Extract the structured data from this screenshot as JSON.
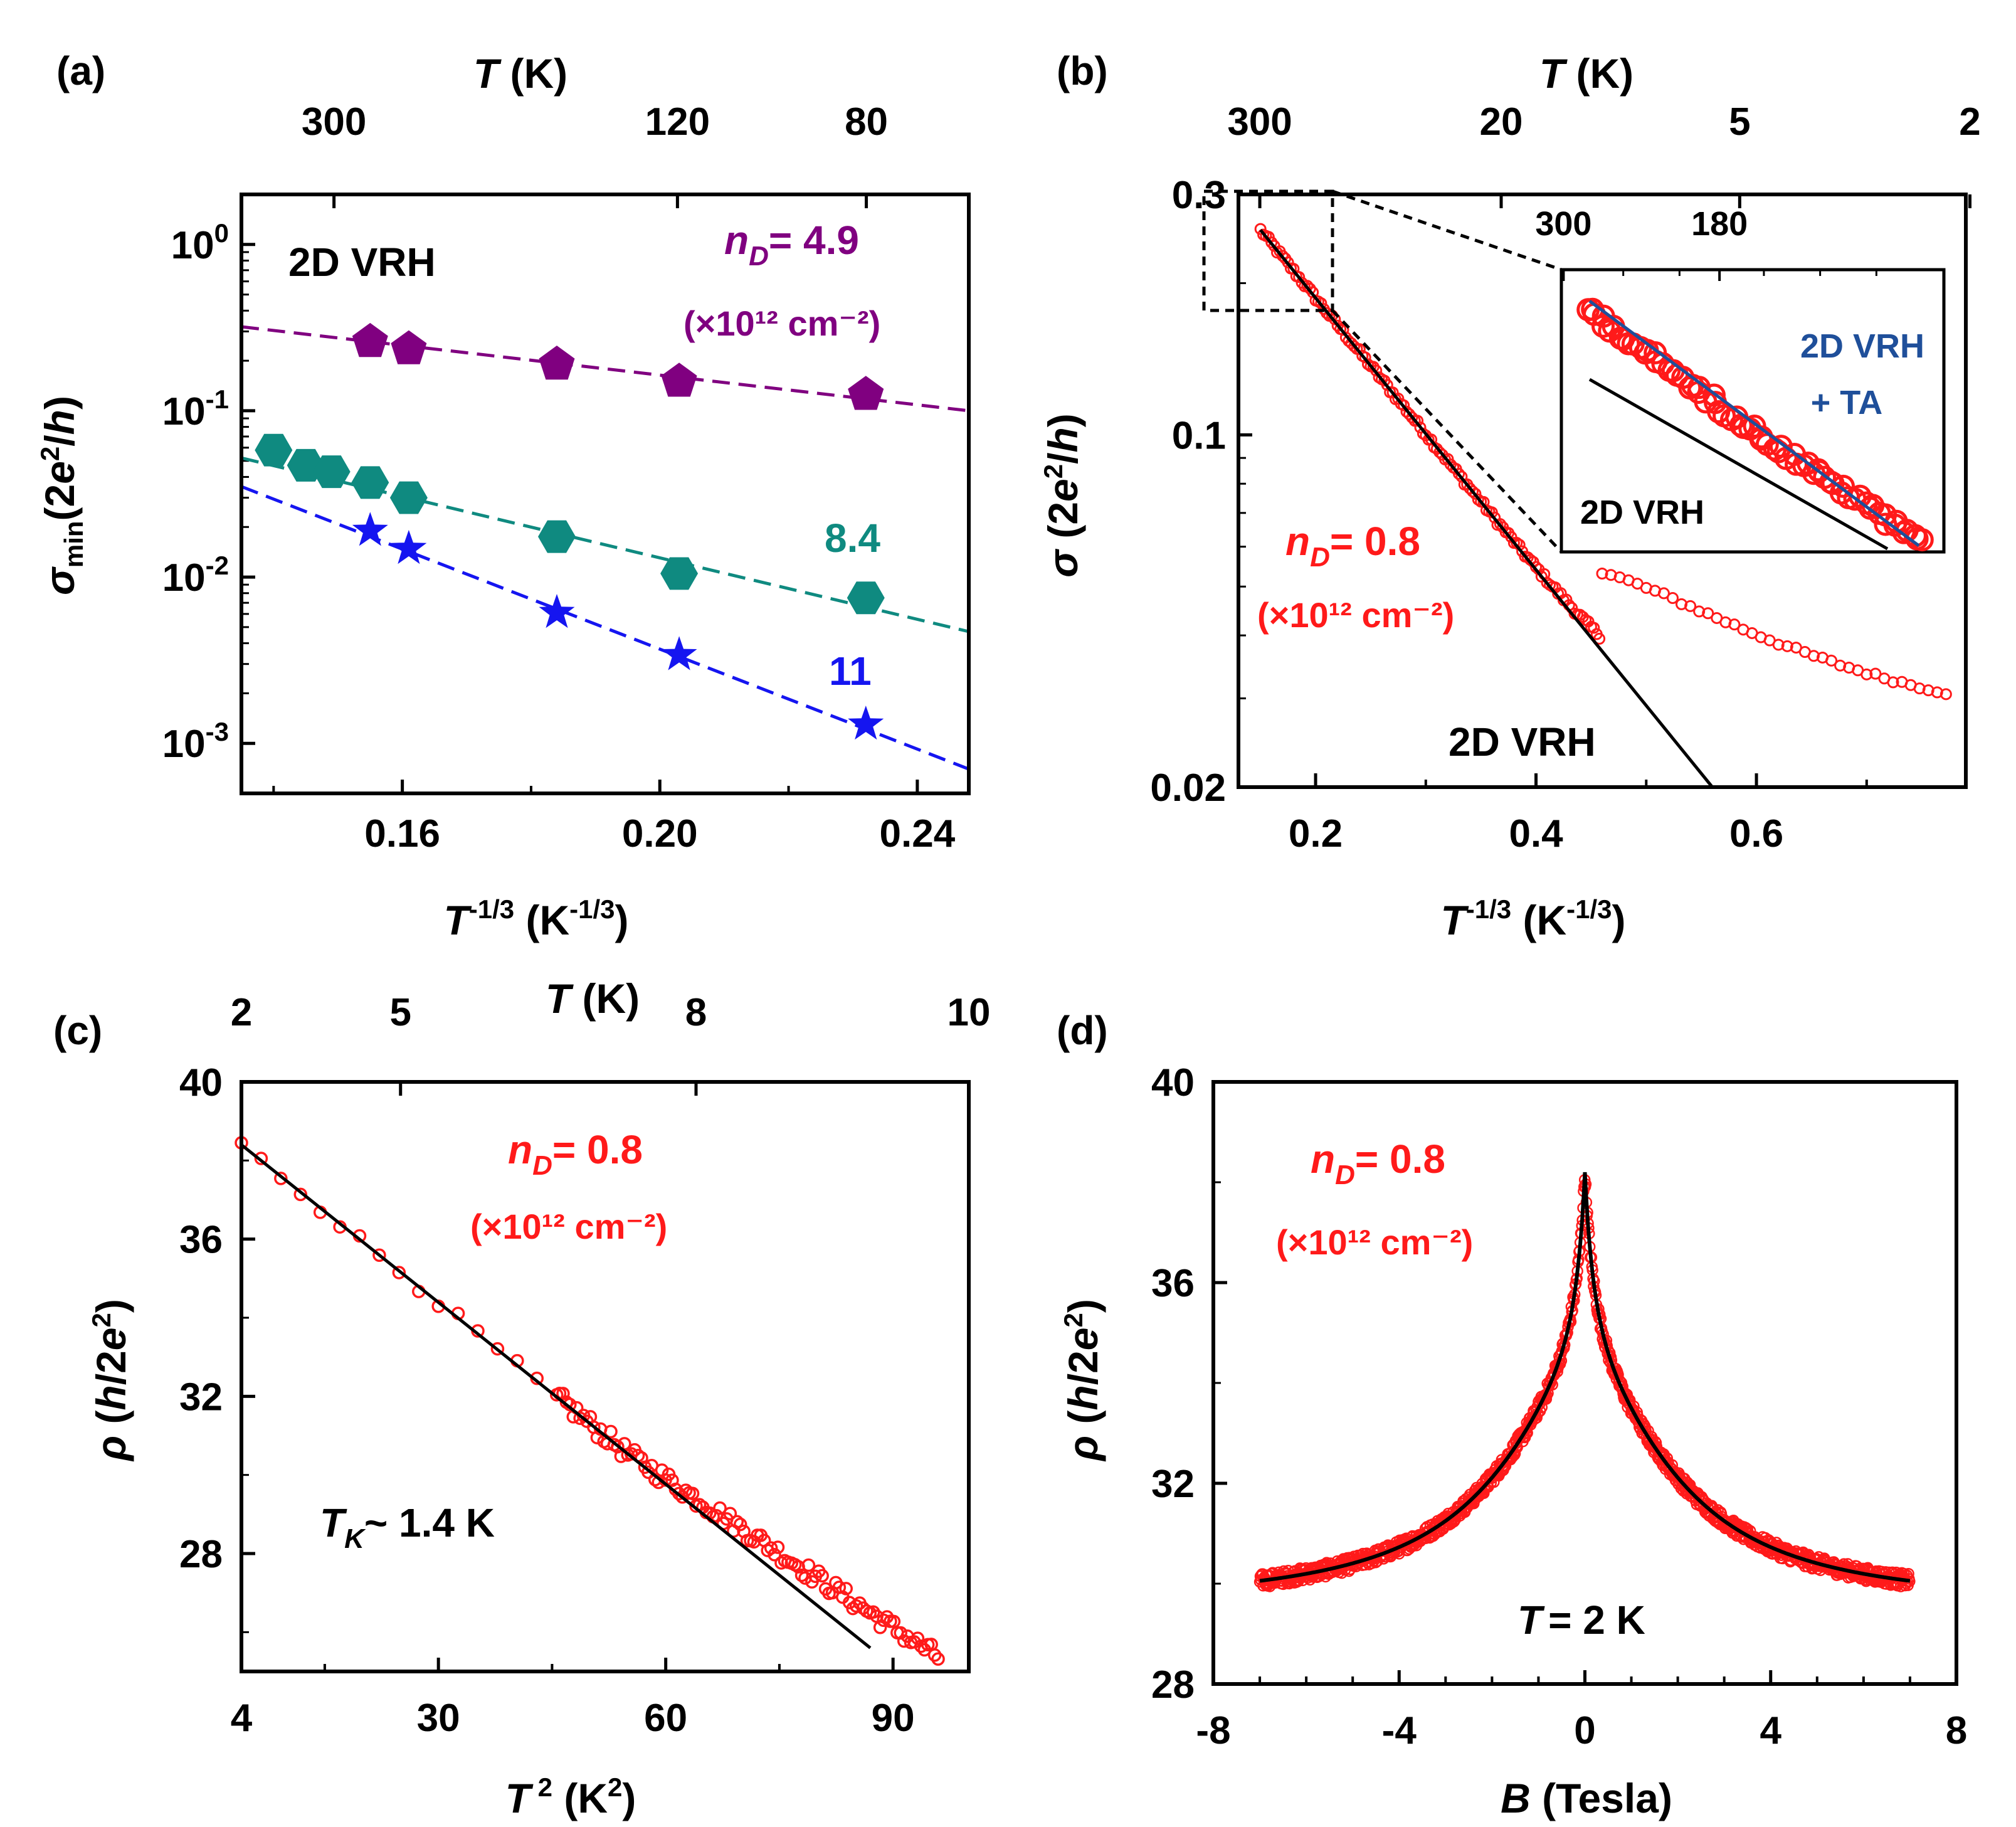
{
  "colors": {
    "purple": "#800080",
    "teal": "#0f8a80",
    "blue": "#1515f0",
    "red": "#ff1a1a",
    "black": "#000000",
    "navy": "#1f4f9a"
  },
  "chart_data": [
    {
      "panel": "a",
      "type": "scatter",
      "panel_label": "(a)",
      "xlabel": "T⁻¹ᐟ³ (K⁻¹ᐟ³)",
      "ylabel": "σ_min (2e²/h)",
      "top_axis_label": "T (K)",
      "yscale": "log",
      "xlim": [
        0.135,
        0.248
      ],
      "ylim": [
        0.0005,
        2
      ],
      "x_ticks": [
        {
          "v": 0.16,
          "label": "0.16"
        },
        {
          "v": 0.2,
          "label": "0.20"
        },
        {
          "v": 0.24,
          "label": "0.24"
        }
      ],
      "y_ticks": [
        {
          "v": 0.001,
          "label": "10⁻³"
        },
        {
          "v": 0.01,
          "label": "10⁻²"
        },
        {
          "v": 0.1,
          "label": "10⁻¹"
        },
        {
          "v": 1,
          "label": "10⁰"
        }
      ],
      "top_ticks": [
        {
          "T": 300,
          "label": "300"
        },
        {
          "T": 120,
          "label": "120"
        },
        {
          "T": 80,
          "label": "80"
        }
      ],
      "annotations": {
        "model": "2D VRH",
        "nD_label": "n",
        "nD_sub": "D",
        "nD_value": "= 4.9",
        "unit": "(×10¹² cm⁻²)",
        "label_84": "8.4",
        "label_11": "11"
      },
      "series": [
        {
          "name": "4.9",
          "marker": "pentagon",
          "color_key": "purple",
          "x": [
            0.155,
            0.161,
            0.184,
            0.203,
            0.232
          ],
          "y": [
            0.26,
            0.235,
            0.19,
            0.15,
            0.125
          ],
          "fit": {
            "x": [
              0.135,
              0.248
            ],
            "y": [
              0.32,
              0.1
            ]
          }
        },
        {
          "name": "8.4",
          "marker": "hexagon",
          "color_key": "teal",
          "x": [
            0.14,
            0.145,
            0.149,
            0.155,
            0.161,
            0.184,
            0.203,
            0.232
          ],
          "y": [
            0.058,
            0.047,
            0.043,
            0.037,
            0.03,
            0.0175,
            0.0105,
            0.0075
          ],
          "fit": {
            "x": [
              0.135,
              0.248
            ],
            "y": [
              0.052,
              0.0047
            ]
          }
        },
        {
          "name": "11",
          "marker": "star",
          "color_key": "blue",
          "x": [
            0.155,
            0.161,
            0.184,
            0.203,
            0.232
          ],
          "y": [
            0.019,
            0.0148,
            0.0061,
            0.0034,
            0.0013
          ],
          "fit": {
            "x": [
              0.135,
              0.248
            ],
            "y": [
              0.035,
              0.0007
            ]
          }
        }
      ]
    },
    {
      "panel": "b",
      "type": "scatter",
      "panel_label": "(b)",
      "xlabel": "T⁻¹ᐟ³ (K⁻¹ᐟ³)",
      "ylabel": "σ (2e²/h)",
      "top_axis_label": "T (K)",
      "yscale": "log",
      "xlim": [
        0.13,
        0.79
      ],
      "ylim": [
        0.02,
        0.3
      ],
      "x_ticks": [
        {
          "v": 0.2,
          "label": "0.2"
        },
        {
          "v": 0.4,
          "label": "0.4"
        },
        {
          "v": 0.6,
          "label": "0.6"
        }
      ],
      "y_ticks": [
        {
          "v": 0.02,
          "label": "0.02"
        },
        {
          "v": 0.1,
          "label": "0.1"
        },
        {
          "v": 0.3,
          "label": "0.3"
        }
      ],
      "top_ticks": [
        {
          "T": 300,
          "label": "300"
        },
        {
          "T": 20,
          "label": "20"
        },
        {
          "T": 5,
          "label": "5"
        },
        {
          "T": 2,
          "label": "2"
        }
      ],
      "annotations": {
        "nD_label": "n",
        "nD_sub": "D",
        "nD_value": "= 0.8",
        "unit": "(×10¹² cm⁻²)",
        "fit_label": "2D VRH"
      },
      "series": [
        {
          "name": "data",
          "marker": "circle-open",
          "color_key": "red",
          "generator": "sigma_vs_Tinv3",
          "x_range": [
            0.15,
            0.79
          ]
        }
      ],
      "fit": {
        "name": "2D VRH",
        "x": [
          0.15,
          0.56
        ],
        "y": [
          0.255,
          0.02
        ]
      },
      "inset": {
        "top_ticks": [
          {
            "T": 300,
            "label": "300"
          },
          {
            "T": 180,
            "label": "180"
          }
        ],
        "label_fit_combined_1": "2D VRH",
        "label_fit_combined_2": "+ TA",
        "label_fit": "2D VRH"
      }
    },
    {
      "panel": "c",
      "type": "scatter",
      "panel_label": "(c)",
      "xlabel": "T² (K²)",
      "ylabel": "ρ (h/2e²)",
      "top_axis_label": "T (K)",
      "xlim": [
        4,
        100
      ],
      "ylim": [
        25,
        40
      ],
      "x_ticks": [
        {
          "v": 4,
          "label": "4"
        },
        {
          "v": 30,
          "label": "30"
        },
        {
          "v": 60,
          "label": "60"
        },
        {
          "v": 90,
          "label": "90"
        }
      ],
      "y_ticks": [
        {
          "v": 28,
          "label": "28"
        },
        {
          "v": 32,
          "label": "32"
        },
        {
          "v": 36,
          "label": "36"
        },
        {
          "v": 40,
          "label": "40"
        }
      ],
      "top_ticks": [
        {
          "T": 2,
          "label": "2"
        },
        {
          "T": 5,
          "label": "5"
        },
        {
          "T": 8,
          "label": "8"
        },
        {
          "T": 10,
          "label": "10"
        }
      ],
      "annotations": {
        "nD_label": "n",
        "nD_sub": "D",
        "nD_value": "= 0.8",
        "unit": "(×10¹² cm⁻²)",
        "tk_label": "T",
        "tk_sub": "K",
        "tk_value": "~ 1.4 K"
      },
      "series": [
        {
          "name": "data",
          "marker": "circle-open",
          "color_key": "red",
          "generator": "rho_vs_T2",
          "x_range": [
            4,
            96
          ]
        }
      ],
      "fit": {
        "x": [
          4,
          87
        ],
        "y": [
          38.4,
          25.6
        ]
      }
    },
    {
      "panel": "d",
      "type": "scatter",
      "panel_label": "(d)",
      "xlabel": "B (Tesla)",
      "ylabel": "ρ (h/2e²)",
      "xlim": [
        -8,
        8
      ],
      "ylim": [
        28,
        40
      ],
      "x_ticks": [
        {
          "v": -8,
          "label": "-8"
        },
        {
          "v": -4,
          "label": "-4"
        },
        {
          "v": 0,
          "label": "0"
        },
        {
          "v": 4,
          "label": "4"
        },
        {
          "v": 8,
          "label": "8"
        }
      ],
      "y_ticks": [
        {
          "v": 28,
          "label": "28"
        },
        {
          "v": 32,
          "label": "32"
        },
        {
          "v": 36,
          "label": "36"
        },
        {
          "v": 40,
          "label": "40"
        }
      ],
      "annotations": {
        "nD_label": "n",
        "nD_sub": "D",
        "nD_value": "= 0.8",
        "unit": "(×10¹² cm⁻²)",
        "temp_label": "T",
        "temp_value": "= 2 K"
      },
      "series": [
        {
          "name": "data",
          "marker": "circle-open",
          "color_key": "red",
          "generator": "rho_vs_B",
          "x_range": [
            -7,
            7
          ]
        }
      ],
      "fit": {
        "name": "fit",
        "x_range": [
          -7,
          7
        ],
        "peak": 38.2,
        "base": 29.5
      }
    }
  ]
}
